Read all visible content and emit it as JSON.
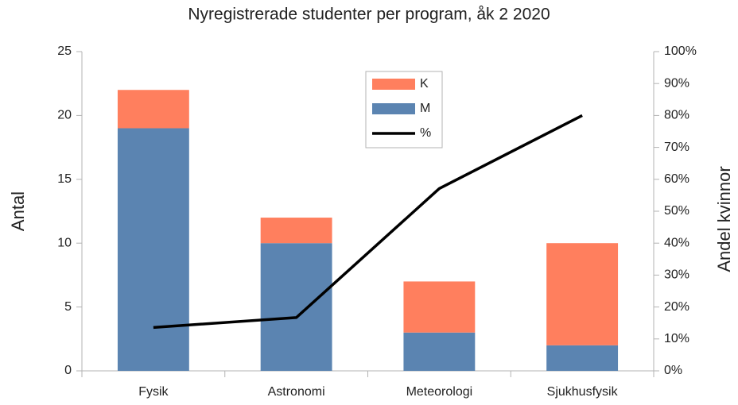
{
  "chart_data": {
    "type": "bar",
    "title": "Nyregistrerade studenter per program, åk 2 2020",
    "y_label": "Antal",
    "y2_label": "Andel kvinnor",
    "categories": [
      "Fysik",
      "Astronomi",
      "Meteorologi",
      "Sjukhusfysik"
    ],
    "series": [
      {
        "name": "M",
        "color": "#5b84b1",
        "values": [
          19,
          10,
          3,
          2
        ]
      },
      {
        "name": "K",
        "color": "#ff7f5e",
        "values": [
          3,
          2,
          4,
          8
        ]
      },
      {
        "name": "%",
        "color": "#000000",
        "type": "line",
        "axis": "y2",
        "values": [
          13.6,
          16.7,
          57.1,
          80
        ]
      }
    ],
    "stacked": true,
    "ylim": [
      0,
      25
    ],
    "yticks": [
      0,
      5,
      10,
      15,
      20,
      25
    ],
    "y2lim": [
      0,
      100
    ],
    "y2ticks": [
      {
        "value": 0,
        "label": "0%"
      },
      {
        "value": 10,
        "label": "10%"
      },
      {
        "value": 20,
        "label": "20%"
      },
      {
        "value": 30,
        "label": "30%"
      },
      {
        "value": 40,
        "label": "40%"
      },
      {
        "value": 50,
        "label": "50%"
      },
      {
        "value": 60,
        "label": "60%"
      },
      {
        "value": 70,
        "label": "70%"
      },
      {
        "value": 80,
        "label": "80%"
      },
      {
        "value": 90,
        "label": "90%"
      },
      {
        "value": 100,
        "label": "100%"
      }
    ],
    "grid": false
  }
}
